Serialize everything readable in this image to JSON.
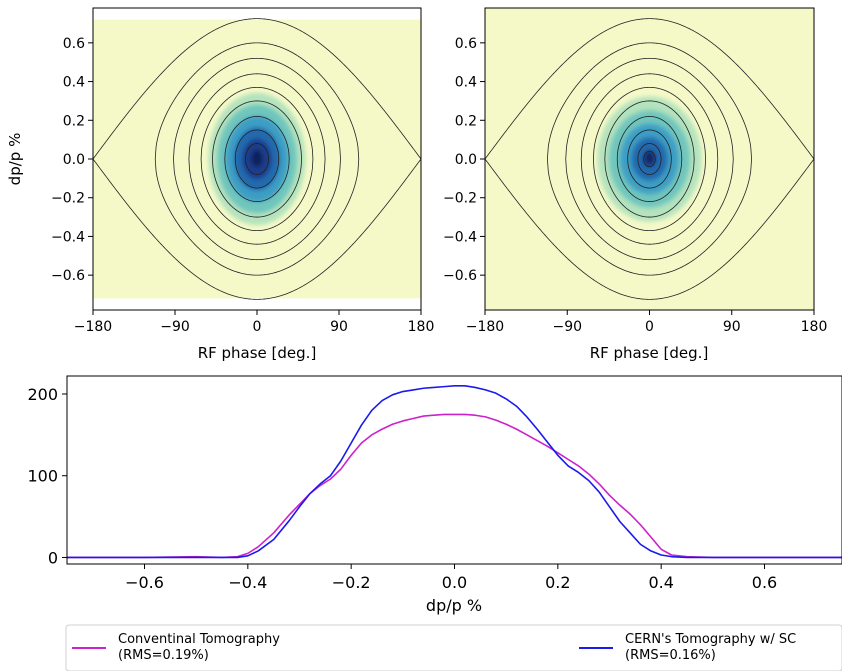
{
  "chart_data": [
    {
      "type": "heatmap",
      "xlabel": "RF phase [deg.]",
      "ylabel": "dp/p %",
      "xlim": [
        -180,
        180
      ],
      "ylim": [
        -0.78,
        0.78
      ],
      "xticks": [
        "−180",
        "−90",
        "0",
        "90",
        "180"
      ],
      "xtick_values": [
        -180,
        -90,
        0,
        90,
        180
      ],
      "yticks": [
        "−0.6",
        "−0.4",
        "−0.2",
        "0.0",
        "0.2",
        "0.4",
        "0.6"
      ],
      "ytick_values": [
        -0.6,
        -0.4,
        -0.2,
        0.0,
        0.2,
        0.4,
        0.6
      ],
      "background_color": "#f5f9c8",
      "bucket_region": {
        "x": [
          -180,
          180
        ],
        "y": [
          -0.72,
          0.72
        ]
      },
      "separatrix_half_height": 0.725,
      "contour_heights": [
        0.6,
        0.52,
        0.44,
        0.37,
        0.3,
        0.22,
        0.15,
        0.08
      ],
      "bunch": {
        "center_phase": 0,
        "phase_sigma": 28,
        "dpp_sigma": 0.18
      },
      "colormap": [
        "#b4e3bd",
        "#6fc6bd",
        "#3c9ec4",
        "#2369ad",
        "#1c3e8c",
        "#172a6b"
      ]
    },
    {
      "type": "heatmap",
      "xlabel": "RF phase [deg.]",
      "ylabel": "",
      "xlim": [
        -180,
        180
      ],
      "ylim": [
        -0.78,
        0.78
      ],
      "xticks": [
        "−180",
        "−90",
        "0",
        "90",
        "180"
      ],
      "xtick_values": [
        -180,
        -90,
        0,
        90,
        180
      ],
      "yticks": [
        "−0.6",
        "−0.4",
        "−0.2",
        "0.0",
        "0.2",
        "0.4",
        "0.6"
      ],
      "ytick_values": [
        -0.6,
        -0.4,
        -0.2,
        0.0,
        0.2,
        0.4,
        0.6
      ],
      "background_color": "#f5f9c8",
      "bucket_region": {
        "x": [
          -180,
          180
        ],
        "y": [
          -0.78,
          0.78
        ]
      },
      "separatrix_half_height": 0.725,
      "contour_heights": [
        0.6,
        0.52,
        0.44,
        0.37,
        0.3,
        0.22,
        0.15,
        0.08,
        0.04
      ],
      "bunch": {
        "center_phase": 0,
        "phase_sigma": 30,
        "dpp_sigma": 0.17
      },
      "colormap": [
        "#b4e3bd",
        "#6fc6bd",
        "#3c9ec4",
        "#2369ad",
        "#1c3e8c"
      ]
    },
    {
      "type": "line",
      "xlabel": "dp/p %",
      "ylabel": "",
      "xlim": [
        -0.75,
        0.75
      ],
      "ylim": [
        -8,
        222
      ],
      "xticks": [
        "−0.6",
        "−0.4",
        "−0.2",
        "0.0",
        "0.2",
        "0.4",
        "0.6"
      ],
      "xtick_values": [
        -0.6,
        -0.4,
        -0.2,
        0.0,
        0.2,
        0.4,
        0.6
      ],
      "yticks": [
        "0",
        "100",
        "200"
      ],
      "ytick_values": [
        0,
        100,
        200
      ],
      "legend_placement": "bottom",
      "x": [
        -0.75,
        -0.7,
        -0.6,
        -0.5,
        -0.45,
        -0.42,
        -0.4,
        -0.38,
        -0.35,
        -0.32,
        -0.3,
        -0.28,
        -0.26,
        -0.24,
        -0.22,
        -0.2,
        -0.18,
        -0.16,
        -0.14,
        -0.12,
        -0.1,
        -0.08,
        -0.06,
        -0.04,
        -0.02,
        0.0,
        0.02,
        0.04,
        0.06,
        0.08,
        0.1,
        0.12,
        0.14,
        0.16,
        0.18,
        0.2,
        0.22,
        0.24,
        0.26,
        0.28,
        0.3,
        0.32,
        0.34,
        0.36,
        0.38,
        0.4,
        0.42,
        0.45,
        0.5,
        0.6,
        0.7,
        0.75
      ],
      "series": [
        {
          "name": "Conventinal Tomography\n(RMS=0.19%)",
          "color": "#cc22cc",
          "values": [
            0,
            0,
            0,
            1,
            0,
            1,
            5,
            13,
            30,
            52,
            65,
            78,
            88,
            96,
            108,
            125,
            140,
            150,
            157,
            163,
            167,
            170,
            173,
            174,
            175,
            175,
            175,
            174,
            172,
            168,
            163,
            157,
            150,
            143,
            136,
            128,
            120,
            112,
            102,
            90,
            76,
            64,
            53,
            40,
            25,
            10,
            3,
            1,
            0,
            0,
            0,
            0
          ]
        },
        {
          "name": "CERN's Tomography w/ SC\n(RMS=0.16%)",
          "color": "#1a1aee",
          "values": [
            0,
            0,
            0,
            0,
            0,
            0,
            2,
            8,
            22,
            45,
            62,
            78,
            90,
            100,
            118,
            140,
            162,
            180,
            192,
            199,
            203,
            205,
            207,
            208,
            209,
            210,
            210,
            208,
            205,
            201,
            194,
            185,
            172,
            157,
            141,
            125,
            112,
            104,
            94,
            80,
            62,
            44,
            30,
            16,
            8,
            3,
            1,
            0,
            0,
            0,
            0,
            0
          ]
        }
      ]
    }
  ]
}
